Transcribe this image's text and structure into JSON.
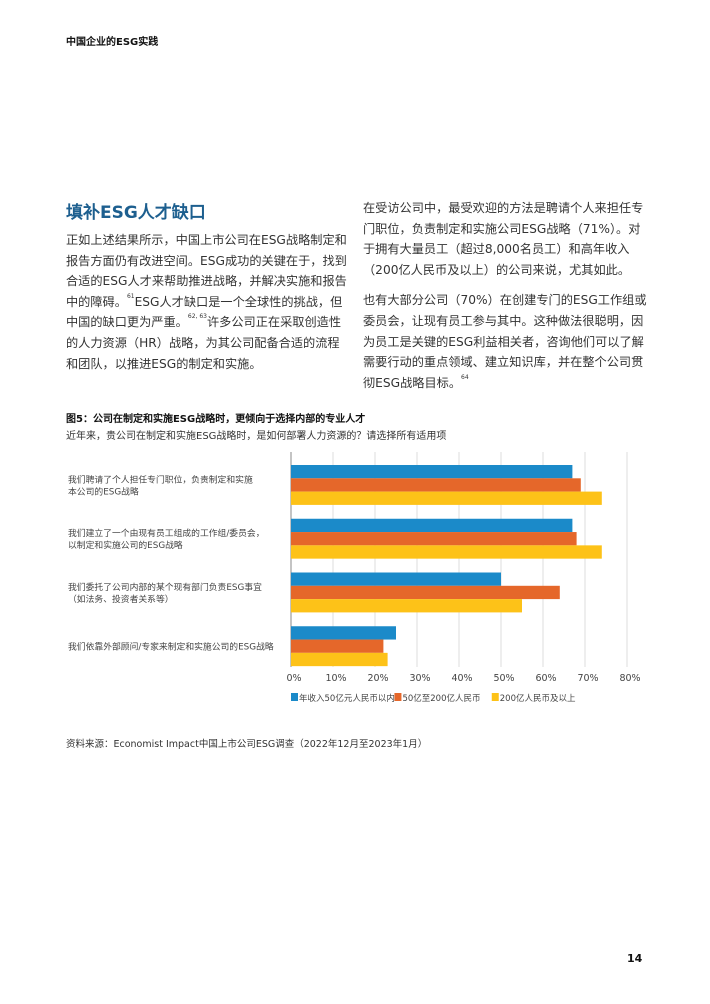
{
  "header": {
    "running_title": "中国企业的ESG实践"
  },
  "section": {
    "heading": "填补ESG人才缺口",
    "left_paragraph": {
      "p1": "正如上述结果所示，中国上市公司在ESG战略制定和报告方面仍有改进空间。ESG成功的关键在于，找到合适的ESG人才来帮助推进战略，并解决实施和报告中的障碍。",
      "ref1": "61",
      "p2": "ESG人才缺口是一个全球性的挑战，但中国的缺口更为严重。",
      "ref2": "62, 63",
      "p3": "许多公司正在采取创造性的人力资源（HR）战略，为其公司配备合适的流程和团队，以推进ESG的制定和实施。"
    },
    "right_paragraphs": {
      "p1": "在受访公司中，最受欢迎的方法是聘请个人来担任专门职位，负责制定和实施公司ESG战略（71%）。对于拥有大量员工（超过8,000名员工）和高年收入（200亿人民币及以上）的公司来说，尤其如此。",
      "p2": "也有大部分公司（70%）在创建专门的ESG工作组或委员会，让现有员工参与其中。这种做法很聪明，因为员工是关键的ESG利益相关者，咨询他们可以了解需要行动的重点领域、建立知识库，并在整个公司贯彻ESG战略目标。",
      "ref": "64"
    }
  },
  "figure": {
    "title": "图5：公司在制定和实施ESG战略时，更倾向于选择内部的专业人才",
    "subtitle": "近年来，贵公司在制定和实施ESG战略时，是如何部署人力资源的？请选择所有适用项"
  },
  "chart_data": {
    "type": "bar",
    "orientation": "horizontal",
    "categories": [
      [
        "我们聘请了个人担任专门职位，负责制定和实施",
        "本公司的ESG战略"
      ],
      [
        "我们建立了一个由现有员工组成的工作组/委员会，",
        "以制定和实施公司的ESG战略"
      ],
      [
        "我们委托了公司内部的某个现有部门负责ESG事宜",
        "（如法务、投资者关系等）"
      ],
      [
        "我们依靠外部顾问/专家来制定和实施公司的ESG战略"
      ]
    ],
    "series": [
      {
        "name": "年收入50亿元人民币以内",
        "color": "#1b8ac9",
        "values": [
          67,
          67,
          50,
          25
        ]
      },
      {
        "name": "50亿至200亿人民币",
        "color": "#e5672a",
        "values": [
          69,
          68,
          64,
          22
        ]
      },
      {
        "name": "200亿人民币及以上",
        "color": "#fdc218",
        "values": [
          74,
          74,
          55,
          23
        ]
      }
    ],
    "xlim": [
      0,
      80
    ],
    "xticks": [
      "0%",
      "10%",
      "20%",
      "30%",
      "40%",
      "50%",
      "60%",
      "70%",
      "80%"
    ],
    "grid": true,
    "legend": "bottom"
  },
  "source": "资料来源：Economist Impact中国上市公司ESG调查（2022年12月至2023年1月）",
  "page_number": "14"
}
